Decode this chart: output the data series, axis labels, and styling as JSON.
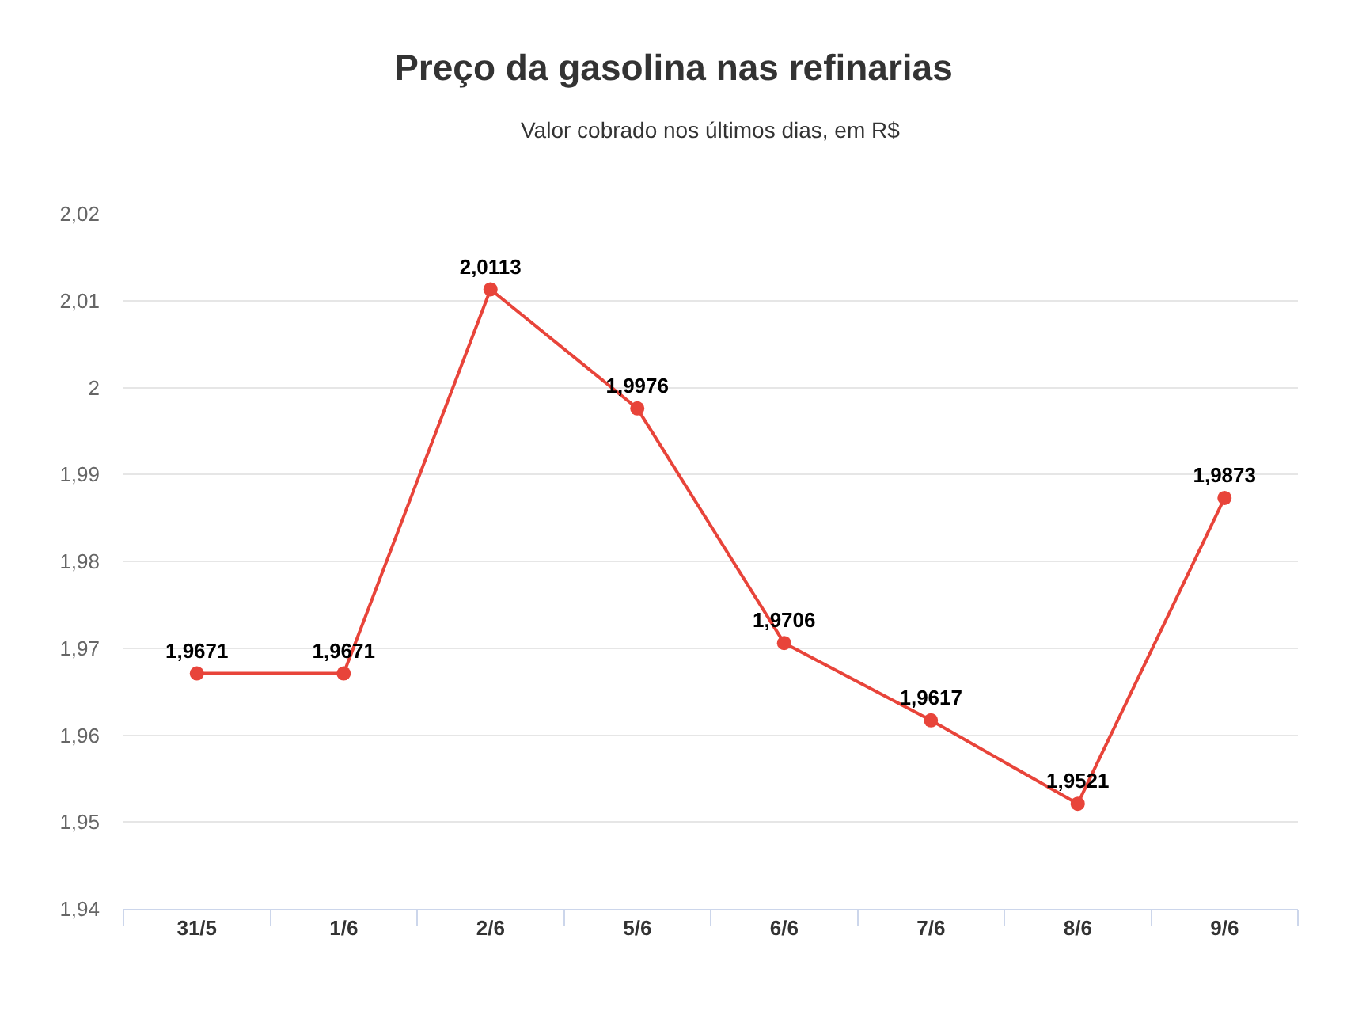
{
  "chart_data": {
    "type": "line",
    "title": "Preço da gasolina nas refinarias",
    "subtitle": "Valor cobrado nos últimos dias, em R$",
    "categories": [
      "31/5",
      "1/6",
      "2/6",
      "5/6",
      "6/6",
      "7/6",
      "8/6",
      "9/6"
    ],
    "series": [
      {
        "color": "#e8443a",
        "values": [
          1.9671,
          1.9671,
          2.0113,
          1.9976,
          1.9706,
          1.9617,
          1.9521,
          1.9873
        ],
        "value_labels": [
          "1,9671",
          "1,9671",
          "2,0113",
          "1,9976",
          "1,9706",
          "1,9617",
          "1,9521",
          "1,9873"
        ]
      }
    ],
    "ylim": [
      1.94,
      2.02
    ],
    "yticks": [
      {
        "value": 1.94,
        "label": "1,94"
      },
      {
        "value": 1.95,
        "label": "1,95"
      },
      {
        "value": 1.96,
        "label": "1,96"
      },
      {
        "value": 1.97,
        "label": "1,97"
      },
      {
        "value": 1.98,
        "label": "1,98"
      },
      {
        "value": 1.99,
        "label": "1,99"
      },
      2,
      {
        "value": 2.01,
        "label": "2,01"
      },
      {
        "value": 2.02,
        "label": "2,02"
      }
    ],
    "grid": "y",
    "legend": false,
    "marker": "circle",
    "line_style": "solid"
  }
}
